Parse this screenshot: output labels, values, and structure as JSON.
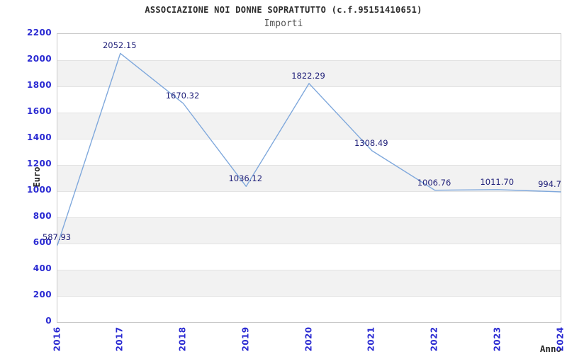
{
  "chart_data": {
    "type": "line",
    "title": "ASSOCIAZIONE NOI DONNE SOPRATTUTTO (c.f.95151410651)",
    "subtitle": "Importi",
    "xlabel": "Anno",
    "ylabel": "Euro",
    "categories": [
      "2016",
      "2017",
      "2018",
      "2019",
      "2020",
      "2021",
      "2022",
      "2023",
      "2024"
    ],
    "values": [
      587.93,
      2052.15,
      1670.32,
      1036.12,
      1822.29,
      1308.49,
      1006.76,
      1011.7,
      994.7
    ],
    "point_labels": [
      "587.93",
      "2052.15",
      "1670.32",
      "1036.12",
      "1822.29",
      "1308.49",
      "1006.76",
      "1011.70",
      "994.7"
    ],
    "ylim": [
      0,
      2200
    ],
    "ytick_step": 200,
    "yticks": [
      0,
      200,
      400,
      600,
      800,
      1000,
      1200,
      1400,
      1600,
      1800,
      2000,
      2200
    ],
    "grid": "horizontal-alternating-bands",
    "legend": "none",
    "colors": {
      "line": "#7fa8dc",
      "axis_tick_label": "#2a2ad2",
      "point_label": "#1e1e78",
      "band_gray": "#f2f2f2",
      "gridline": "#e3e3e3",
      "plot_border": "#c9c9c9",
      "title": "#2b2b2b",
      "subtitle": "#555555",
      "axis_name_label": "#222222"
    }
  }
}
